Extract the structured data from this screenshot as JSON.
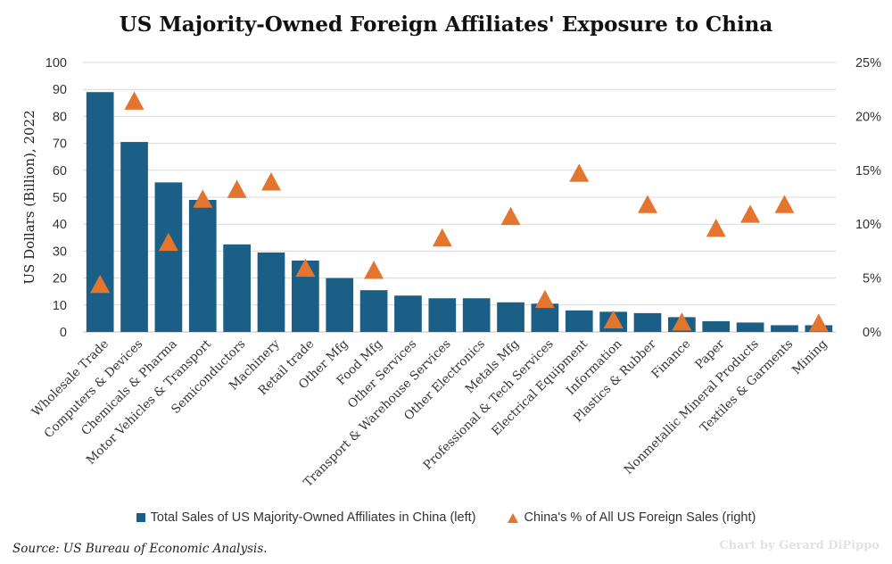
{
  "chart_data": {
    "type": "bar",
    "title": "US Majority-Owned Foreign Affiliates' Exposure to China",
    "ylabel": "US Dollars (Billion), 2022",
    "ylim": [
      0,
      100
    ],
    "y_ticks": [
      "0",
      "10",
      "20",
      "30",
      "40",
      "50",
      "60",
      "70",
      "80",
      "90",
      "100"
    ],
    "y2lim": [
      0,
      25
    ],
    "y2_ticks": [
      "0%",
      "5%",
      "10%",
      "15%",
      "20%",
      "25%"
    ],
    "grid": true,
    "categories": [
      "Wholesale Trade",
      "Computers & Devices",
      "Chemicals & Pharma",
      "Motor Vehicles & Transport",
      "Semiconductors",
      "Machinery",
      "Retail trade",
      "Other Mfg",
      "Food Mfg",
      "Other Services",
      "Transport & Warehouse Services",
      "Other Electronics",
      "Metals Mfg",
      "Professional & Tech Services",
      "Electrical Equipment",
      "Information",
      "Plastics & Rubber",
      "Finance",
      "Paper",
      "Nonmetallic Mineral Products",
      "Textiles & Garments",
      "Mining"
    ],
    "series": [
      {
        "name": "Total Sales of US Majority-Owned Affiliates in China (left)",
        "kind": "bar",
        "axis": "left",
        "color": "#1B5E86",
        "values": [
          89,
          70.5,
          55.5,
          49,
          32.5,
          29.5,
          26.5,
          20,
          15.5,
          13.5,
          12.5,
          12.5,
          11,
          10.5,
          8,
          7.5,
          7,
          5.5,
          4,
          3.5,
          2.5,
          2.5
        ]
      },
      {
        "name": "China's % of All US Foreign Sales (right)",
        "kind": "marker",
        "marker": "triangle",
        "axis": "right",
        "color": "#E3752F",
        "values": [
          4.4,
          21.4,
          8.3,
          12.3,
          13.2,
          13.9,
          5.9,
          null,
          5.7,
          null,
          8.7,
          null,
          10.7,
          3.0,
          14.7,
          1.1,
          11.8,
          0.9,
          9.6,
          10.9,
          11.8,
          0.8
        ]
      }
    ],
    "legend_position": "bottom",
    "source": "Source: US Bureau of Economic Analysis.",
    "credit": "Chart by Gerard DiPippo"
  }
}
